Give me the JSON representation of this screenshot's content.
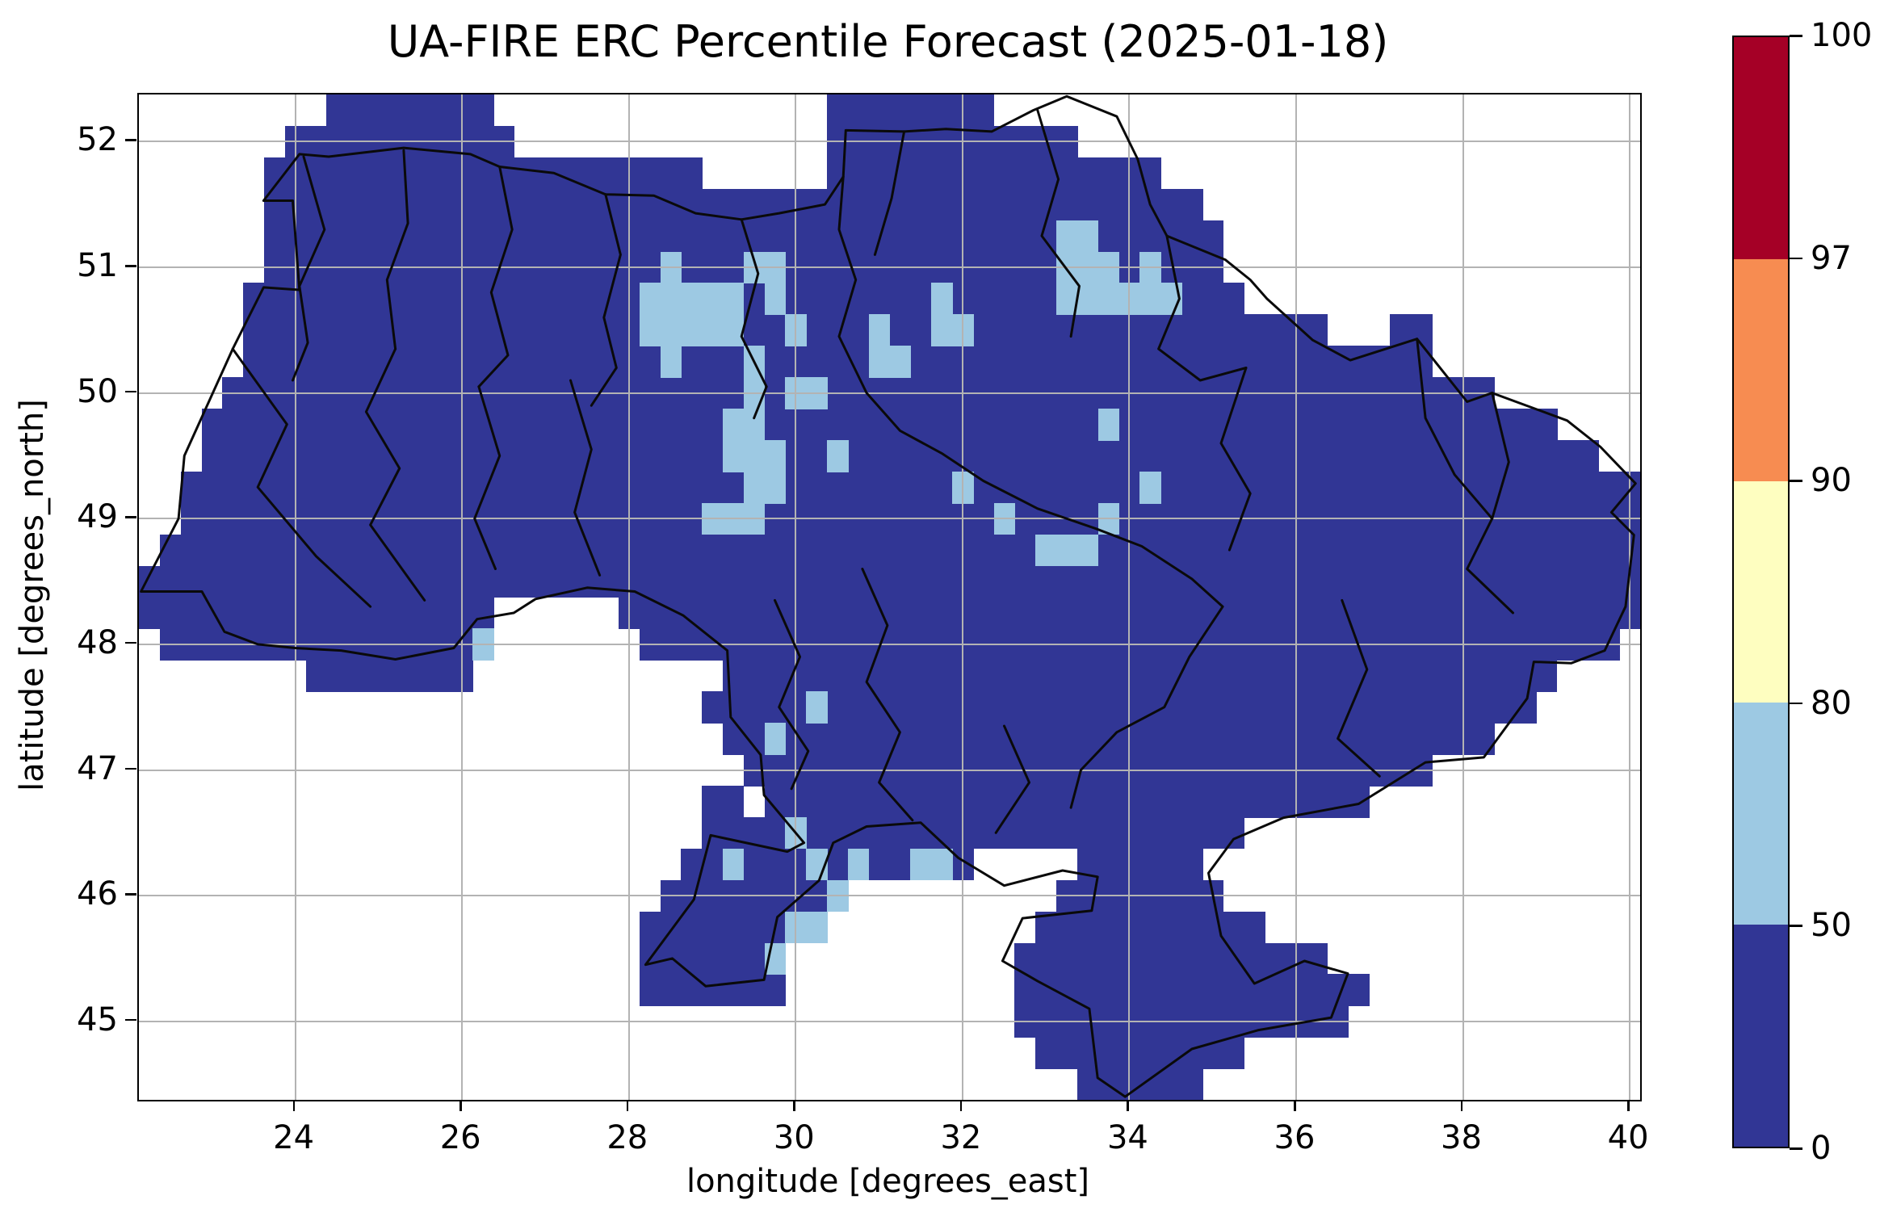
{
  "title": "UA-FIRE ERC Percentile Forecast (2025-01-18)",
  "x_axis": {
    "label": "longitude [degrees_east]",
    "ticks": [
      24,
      26,
      28,
      30,
      32,
      34,
      36,
      38,
      40
    ]
  },
  "y_axis": {
    "label": "latitude [degrees_north]",
    "ticks": [
      45,
      46,
      47,
      48,
      49,
      50,
      51,
      52
    ]
  },
  "colorbar": {
    "ticks_top_to_bottom": [
      100,
      97,
      90,
      80,
      50,
      0
    ],
    "segments_top_to_bottom": [
      {
        "range": "97-100",
        "color": "#a50026"
      },
      {
        "range": "90-97",
        "color": "#f78c51"
      },
      {
        "range": "80-90",
        "color": "#fefec0"
      },
      {
        "range": "50-80",
        "color": "#9dc9e3"
      },
      {
        "range": "0-50",
        "color": "#313695"
      }
    ]
  },
  "chart_data": {
    "type": "heatmap",
    "description": "ERC percentile class per 0.25-degree grid cell over Ukraine; B = percentile 0-50 (dark blue), L = percentile 50-80 (light blue), blank = no data",
    "lon_min": 22.125,
    "lon_max": 40.125,
    "lat_min": 44.375,
    "lat_max": 52.375,
    "cell_size_deg": 0.25,
    "n_cols": 72,
    "n_rows": 32,
    "grid_on": true,
    "grid_color": "#b3b3b3",
    "class_colors": {
      "B": "#313695",
      "L": "#9dc9e3"
    },
    "data_segments": [
      [
        [
          9,
          16
        ],
        [
          33,
          40
        ]
      ],
      [
        [
          7,
          17
        ],
        [
          33,
          44
        ]
      ],
      [
        [
          6,
          26
        ],
        [
          33,
          48
        ]
      ],
      [
        [
          6,
          50
        ]
      ],
      [
        [
          6,
          51
        ]
      ],
      [
        [
          6,
          51
        ]
      ],
      [
        [
          5,
          52
        ]
      ],
      [
        [
          5,
          56
        ],
        [
          60,
          61
        ]
      ],
      [
        [
          5,
          61
        ]
      ],
      [
        [
          4,
          64
        ]
      ],
      [
        [
          3,
          67
        ]
      ],
      [
        [
          3,
          69
        ]
      ],
      [
        [
          2,
          71
        ]
      ],
      [
        [
          2,
          71
        ]
      ],
      [
        [
          1,
          71
        ]
      ],
      [
        [
          0,
          71
        ]
      ],
      [
        [
          0,
          16
        ],
        [
          23,
          71
        ]
      ],
      [
        [
          1,
          16
        ],
        [
          24,
          70
        ]
      ],
      [
        [
          8,
          15
        ],
        [
          28,
          67
        ]
      ],
      [
        [
          27,
          66
        ]
      ],
      [
        [
          28,
          64
        ]
      ],
      [
        [
          29,
          61
        ]
      ],
      [
        [
          27,
          28
        ],
        [
          30,
          58
        ]
      ],
      [
        [
          27,
          52
        ]
      ],
      [
        [
          26,
          39
        ],
        [
          45,
          50
        ]
      ],
      [
        [
          25,
          33
        ],
        [
          44,
          51
        ]
      ],
      [
        [
          24,
          32
        ],
        [
          43,
          53
        ]
      ],
      [
        [
          24,
          30
        ],
        [
          42,
          56
        ]
      ],
      [
        [
          24,
          30
        ],
        [
          42,
          58
        ]
      ],
      [
        [
          42,
          57
        ]
      ],
      [
        [
          43,
          52
        ]
      ],
      [
        [
          45,
          50
        ]
      ]
    ],
    "light_cells": [
      [
        4,
        44
      ],
      [
        4,
        45
      ],
      [
        5,
        25
      ],
      [
        5,
        29
      ],
      [
        5,
        30
      ],
      [
        5,
        44
      ],
      [
        5,
        45
      ],
      [
        5,
        46
      ],
      [
        5,
        48
      ],
      [
        6,
        24
      ],
      [
        6,
        25
      ],
      [
        6,
        26
      ],
      [
        6,
        27
      ],
      [
        6,
        28
      ],
      [
        6,
        30
      ],
      [
        6,
        38
      ],
      [
        6,
        44
      ],
      [
        6,
        45
      ],
      [
        6,
        46
      ],
      [
        6,
        47
      ],
      [
        6,
        48
      ],
      [
        6,
        49
      ],
      [
        7,
        24
      ],
      [
        7,
        25
      ],
      [
        7,
        26
      ],
      [
        7,
        27
      ],
      [
        7,
        28
      ],
      [
        7,
        31
      ],
      [
        7,
        35
      ],
      [
        7,
        38
      ],
      [
        7,
        39
      ],
      [
        8,
        25
      ],
      [
        8,
        29
      ],
      [
        8,
        35
      ],
      [
        8,
        36
      ],
      [
        9,
        29
      ],
      [
        9,
        31
      ],
      [
        9,
        32
      ],
      [
        10,
        28
      ],
      [
        10,
        29
      ],
      [
        10,
        46
      ],
      [
        11,
        28
      ],
      [
        11,
        29
      ],
      [
        11,
        30
      ],
      [
        11,
        33
      ],
      [
        12,
        29
      ],
      [
        12,
        30
      ],
      [
        12,
        39
      ],
      [
        12,
        48
      ],
      [
        13,
        27
      ],
      [
        13,
        28
      ],
      [
        13,
        29
      ],
      [
        13,
        41
      ],
      [
        13,
        46
      ],
      [
        14,
        43
      ],
      [
        14,
        44
      ],
      [
        14,
        45
      ],
      [
        17,
        16
      ],
      [
        19,
        32
      ],
      [
        20,
        30
      ],
      [
        23,
        31
      ],
      [
        24,
        28
      ],
      [
        24,
        32
      ],
      [
        24,
        34
      ],
      [
        24,
        37
      ],
      [
        24,
        38
      ],
      [
        25,
        33
      ],
      [
        26,
        31
      ],
      [
        26,
        32
      ],
      [
        27,
        30
      ]
    ],
    "boundaries": {
      "color": "#0a0a0a",
      "outline": [
        [
          23.62,
          51.53
        ],
        [
          24.05,
          51.9
        ],
        [
          24.4,
          51.88
        ],
        [
          25.3,
          51.95
        ],
        [
          26.1,
          51.9
        ],
        [
          26.45,
          51.8
        ],
        [
          27.1,
          51.75
        ],
        [
          27.72,
          51.58
        ],
        [
          28.3,
          51.57
        ],
        [
          28.8,
          51.43
        ],
        [
          29.35,
          51.38
        ],
        [
          29.8,
          51.43
        ],
        [
          30.35,
          51.5
        ],
        [
          30.57,
          51.72
        ],
        [
          30.6,
          52.09
        ],
        [
          31.3,
          52.08
        ],
        [
          31.8,
          52.1
        ],
        [
          32.35,
          52.08
        ],
        [
          32.85,
          52.25
        ],
        [
          33.25,
          52.36
        ],
        [
          33.85,
          52.2
        ],
        [
          34.1,
          51.86
        ],
        [
          34.25,
          51.5
        ],
        [
          34.45,
          51.25
        ],
        [
          35.15,
          51.06
        ],
        [
          35.45,
          50.9
        ],
        [
          35.65,
          50.75
        ],
        [
          36.2,
          50.42
        ],
        [
          36.65,
          50.26
        ],
        [
          37.45,
          50.43
        ],
        [
          38.05,
          49.93
        ],
        [
          38.35,
          50.0
        ],
        [
          39.25,
          49.78
        ],
        [
          39.65,
          49.57
        ],
        [
          40.07,
          49.28
        ],
        [
          39.78,
          49.05
        ],
        [
          40.05,
          48.87
        ],
        [
          39.95,
          48.3
        ],
        [
          39.7,
          47.95
        ],
        [
          39.3,
          47.85
        ],
        [
          38.85,
          47.86
        ],
        [
          38.77,
          47.57
        ],
        [
          38.25,
          47.1
        ],
        [
          37.55,
          47.06
        ],
        [
          36.75,
          46.73
        ],
        [
          35.85,
          46.62
        ],
        [
          35.25,
          46.45
        ],
        [
          34.95,
          46.18
        ],
        [
          35.1,
          45.68
        ],
        [
          35.5,
          45.3
        ],
        [
          36.1,
          45.48
        ],
        [
          36.62,
          45.38
        ],
        [
          36.42,
          45.03
        ],
        [
          35.55,
          44.93
        ],
        [
          34.75,
          44.78
        ],
        [
          33.95,
          44.4
        ],
        [
          33.62,
          44.55
        ],
        [
          33.52,
          45.1
        ],
        [
          32.9,
          45.32
        ],
        [
          32.48,
          45.48
        ],
        [
          32.72,
          45.82
        ],
        [
          33.55,
          45.88
        ],
        [
          33.62,
          46.15
        ],
        [
          33.2,
          46.2
        ],
        [
          32.5,
          46.08
        ],
        [
          31.95,
          46.3
        ],
        [
          31.5,
          46.58
        ],
        [
          30.85,
          46.55
        ],
        [
          30.45,
          46.42
        ],
        [
          30.28,
          46.12
        ],
        [
          29.78,
          45.83
        ],
        [
          29.68,
          45.52
        ],
        [
          29.62,
          45.33
        ],
        [
          28.92,
          45.28
        ],
        [
          28.52,
          45.5
        ],
        [
          28.2,
          45.45
        ],
        [
          28.78,
          45.97
        ],
        [
          28.98,
          46.48
        ],
        [
          29.9,
          46.35
        ],
        [
          30.1,
          46.42
        ],
        [
          29.62,
          46.8
        ],
        [
          29.58,
          47.12
        ],
        [
          29.22,
          47.42
        ],
        [
          29.18,
          47.95
        ],
        [
          28.65,
          48.23
        ],
        [
          28.07,
          48.42
        ],
        [
          27.5,
          48.45
        ],
        [
          26.88,
          48.36
        ],
        [
          26.62,
          48.25
        ],
        [
          26.18,
          48.2
        ],
        [
          25.9,
          47.97
        ],
        [
          25.2,
          47.88
        ],
        [
          24.55,
          47.95
        ],
        [
          24.0,
          47.97
        ],
        [
          23.55,
          48.0
        ],
        [
          23.15,
          48.1
        ],
        [
          22.88,
          48.42
        ],
        [
          22.15,
          48.42
        ],
        [
          22.6,
          49.0
        ],
        [
          22.67,
          49.5
        ],
        [
          23.25,
          50.35
        ],
        [
          23.62,
          50.84
        ],
        [
          24.05,
          50.82
        ],
        [
          23.97,
          51.53
        ],
        [
          23.62,
          51.53
        ]
      ],
      "internal": [
        [
          [
            24.1,
            51.88
          ],
          [
            24.35,
            51.3
          ],
          [
            24.05,
            50.85
          ],
          [
            24.15,
            50.4
          ],
          [
            23.97,
            50.1
          ]
        ],
        [
          [
            25.3,
            51.93
          ],
          [
            25.35,
            51.35
          ],
          [
            25.1,
            50.9
          ],
          [
            25.2,
            50.35
          ]
        ],
        [
          [
            26.45,
            51.8
          ],
          [
            26.6,
            51.3
          ],
          [
            26.35,
            50.8
          ],
          [
            26.55,
            50.3
          ],
          [
            26.2,
            50.05
          ]
        ],
        [
          [
            27.72,
            51.58
          ],
          [
            27.9,
            51.1
          ],
          [
            27.7,
            50.6
          ],
          [
            27.85,
            50.2
          ],
          [
            27.55,
            49.9
          ]
        ],
        [
          [
            29.35,
            51.38
          ],
          [
            29.55,
            50.95
          ],
          [
            29.35,
            50.45
          ],
          [
            29.65,
            50.05
          ],
          [
            29.5,
            49.8
          ]
        ],
        [
          [
            30.57,
            51.72
          ],
          [
            30.52,
            51.3
          ],
          [
            30.72,
            50.9
          ],
          [
            30.52,
            50.45
          ],
          [
            30.85,
            50.0
          ],
          [
            31.25,
            49.7
          ],
          [
            31.75,
            49.52
          ],
          [
            32.25,
            49.3
          ],
          [
            32.9,
            49.08
          ],
          [
            33.6,
            48.92
          ],
          [
            34.15,
            48.78
          ],
          [
            34.75,
            48.52
          ],
          [
            35.12,
            48.3
          ],
          [
            34.72,
            47.9
          ],
          [
            34.42,
            47.5
          ],
          [
            33.85,
            47.3
          ],
          [
            33.42,
            47.0
          ],
          [
            33.3,
            46.7
          ]
        ],
        [
          [
            32.9,
            52.25
          ],
          [
            33.15,
            51.7
          ],
          [
            32.95,
            51.25
          ],
          [
            33.4,
            50.85
          ],
          [
            33.3,
            50.45
          ]
        ],
        [
          [
            31.3,
            52.08
          ],
          [
            31.15,
            51.55
          ],
          [
            30.95,
            51.1
          ]
        ],
        [
          [
            34.45,
            51.25
          ],
          [
            34.6,
            50.75
          ],
          [
            34.35,
            50.35
          ],
          [
            34.85,
            50.1
          ],
          [
            35.4,
            50.2
          ]
        ],
        [
          [
            35.4,
            50.2
          ],
          [
            35.1,
            49.6
          ],
          [
            35.45,
            49.2
          ],
          [
            35.2,
            48.75
          ]
        ],
        [
          [
            37.45,
            50.43
          ],
          [
            37.55,
            49.8
          ],
          [
            37.9,
            49.35
          ],
          [
            38.35,
            49.0
          ],
          [
            38.05,
            48.6
          ],
          [
            38.6,
            48.25
          ]
        ],
        [
          [
            38.35,
            50.0
          ],
          [
            38.55,
            49.45
          ],
          [
            38.35,
            49.0
          ]
        ],
        [
          [
            36.55,
            48.35
          ],
          [
            36.85,
            47.8
          ],
          [
            36.5,
            47.25
          ],
          [
            37.0,
            46.95
          ]
        ],
        [
          [
            30.8,
            48.6
          ],
          [
            31.1,
            48.15
          ],
          [
            30.85,
            47.7
          ],
          [
            31.25,
            47.3
          ],
          [
            31.0,
            46.9
          ],
          [
            31.4,
            46.6
          ]
        ],
        [
          [
            29.75,
            48.35
          ],
          [
            30.05,
            47.9
          ],
          [
            29.8,
            47.5
          ],
          [
            30.15,
            47.15
          ],
          [
            29.95,
            46.85
          ]
        ],
        [
          [
            27.3,
            50.1
          ],
          [
            27.55,
            49.55
          ],
          [
            27.35,
            49.05
          ],
          [
            27.65,
            48.55
          ]
        ],
        [
          [
            26.2,
            50.05
          ],
          [
            26.45,
            49.5
          ],
          [
            26.15,
            49.0
          ],
          [
            26.4,
            48.6
          ]
        ],
        [
          [
            25.2,
            50.35
          ],
          [
            24.85,
            49.85
          ],
          [
            25.25,
            49.4
          ],
          [
            24.9,
            48.95
          ],
          [
            25.55,
            48.35
          ]
        ],
        [
          [
            23.25,
            50.35
          ],
          [
            23.9,
            49.75
          ],
          [
            23.55,
            49.25
          ],
          [
            24.25,
            48.7
          ],
          [
            24.9,
            48.3
          ]
        ],
        [
          [
            32.5,
            47.35
          ],
          [
            32.8,
            46.9
          ],
          [
            32.4,
            46.5
          ]
        ]
      ]
    }
  }
}
